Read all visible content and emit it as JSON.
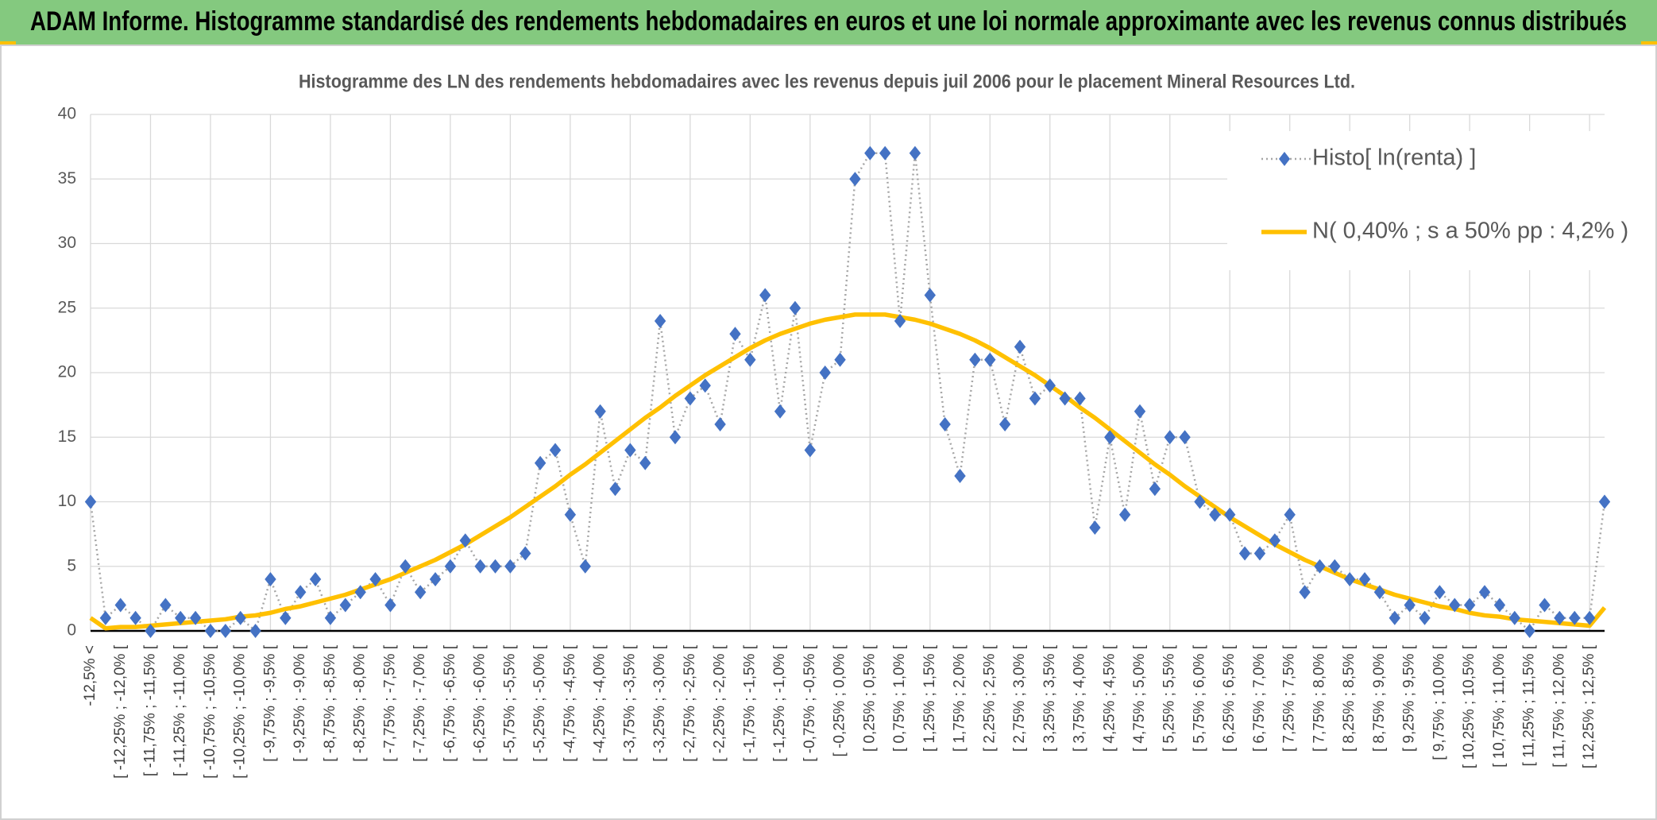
{
  "header": {
    "title": "ADAM Informe. Histogramme standardisé des rendements hebdomadaires en euros et une loi normale approximante avec les revenus connus distribués"
  },
  "chart_data": {
    "type": "line",
    "title": "Histogramme des LN des rendements hebdomadaires avec les revenus depuis juil 2006 pour le placement Mineral Resources Ltd.",
    "categories": [
      "-12,5% <",
      null,
      "[ -12,25% ; -12,0% [",
      null,
      "[ -11,75% ; -11,5% [",
      null,
      "[ -11,25% ; -11,0% [",
      null,
      "[ -10,75% ; -10,5% [",
      null,
      "[ -10,25% ; -10,0% [",
      null,
      "[ -9,75% ; -9,5% [",
      null,
      "[ -9,25% ; -9,0% [",
      null,
      "[ -8,75% ; -8,5% [",
      null,
      "[ -8,25% ; -8,0% [",
      null,
      "[ -7,75% ; -7,5% [",
      null,
      "[ -7,25% ; -7,0% [",
      null,
      "[ -6,75% ; -6,5% [",
      null,
      "[ -6,25% ; -6,0% [",
      null,
      "[ -5,75% ; -5,5% [",
      null,
      "[ -5,25% ; -5,0% [",
      null,
      "[ -4,75% ; -4,5% [",
      null,
      "[ -4,25% ; -4,0% [",
      null,
      "[ -3,75% ; -3,5% [",
      null,
      "[ -3,25% ; -3,0% [",
      null,
      "[ -2,75% ; -2,5% [",
      null,
      "[ -2,25% ; -2,0% [",
      null,
      "[ -1,75% ; -1,5% [",
      null,
      "[ -1,25% ; -1,0% [",
      null,
      "[ -0,75% ; -0,5% [",
      null,
      "[ -0,25% ; 0,0% [",
      null,
      "[ 0,25% ; 0,5% [",
      null,
      "[ 0,75% ; 1,0% [",
      null,
      "[ 1,25% ; 1,5% [",
      null,
      "[ 1,75% ; 2,0% [",
      null,
      "[ 2,25% ; 2,5% [",
      null,
      "[ 2,75% ; 3,0% [",
      null,
      "[ 3,25% ; 3,5% [",
      null,
      "[ 3,75% ; 4,0% [",
      null,
      "[ 4,25% ; 4,5% [",
      null,
      "[ 4,75% ; 5,0% [",
      null,
      "[ 5,25% ; 5,5% [",
      null,
      "[ 5,75% ; 6,0% [",
      null,
      "[ 6,25% ; 6,5% [",
      null,
      "[ 6,75% ; 7,0% [",
      null,
      "[ 7,25% ; 7,5% [",
      null,
      "[ 7,75% ; 8,0% [",
      null,
      "[ 8,25% ; 8,5% [",
      null,
      "[ 8,75% ; 9,0% [",
      null,
      "[ 9,25% ; 9,5% [",
      null,
      "[ 9,75% ; 10,0% [",
      null,
      "[ 10,25% ; 10,5% [",
      null,
      "[ 10,75% ; 11,0% [",
      null,
      "[ 11,25% ; 11,5% [",
      null,
      "[ 11,75% ; 12,0% [",
      null,
      "[ 12,25% ; 12,5% [",
      null
    ],
    "series": [
      {
        "name": "Histo[ ln(renta) ]",
        "color": "#4472c4",
        "line_color": "#a6a6a6",
        "values": [
          10,
          1,
          2,
          1,
          0,
          2,
          1,
          1,
          0,
          0,
          1,
          0,
          4,
          1,
          3,
          4,
          1,
          2,
          3,
          4,
          2,
          5,
          3,
          4,
          5,
          7,
          5,
          5,
          5,
          6,
          13,
          14,
          9,
          5,
          17,
          11,
          14,
          13,
          24,
          15,
          18,
          19,
          16,
          23,
          21,
          26,
          17,
          25,
          14,
          20,
          21,
          35,
          37,
          37,
          24,
          37,
          26,
          16,
          12,
          21,
          21,
          16,
          22,
          18,
          19,
          18,
          18,
          8,
          15,
          9,
          17,
          11,
          15,
          15,
          10,
          9,
          9,
          6,
          6,
          7,
          9,
          3,
          5,
          5,
          4,
          4,
          3,
          1,
          2,
          1,
          3,
          2,
          2,
          3,
          2,
          1,
          0,
          2,
          1,
          1,
          1,
          10
        ]
      },
      {
        "name": "N( 0,40% ; s a 50% pp : 4,2% )",
        "color": "#ffc000",
        "values": [
          1.0,
          0.2,
          0.3,
          0.3,
          0.4,
          0.5,
          0.6,
          0.7,
          0.8,
          0.9,
          1.1,
          1.2,
          1.4,
          1.7,
          1.9,
          2.2,
          2.5,
          2.8,
          3.2,
          3.6,
          4.0,
          4.5,
          5.0,
          5.5,
          6.1,
          6.7,
          7.4,
          8.1,
          8.8,
          9.6,
          10.4,
          11.2,
          12.1,
          12.9,
          13.8,
          14.7,
          15.6,
          16.5,
          17.3,
          18.2,
          19.0,
          19.8,
          20.5,
          21.2,
          21.9,
          22.5,
          23.0,
          23.4,
          23.8,
          24.1,
          24.3,
          24.5,
          24.5,
          24.5,
          24.3,
          24.1,
          23.8,
          23.4,
          23.0,
          22.5,
          21.9,
          21.2,
          20.5,
          19.8,
          19.0,
          18.2,
          17.3,
          16.5,
          15.6,
          14.7,
          13.8,
          12.9,
          12.1,
          11.2,
          10.4,
          9.6,
          8.8,
          8.1,
          7.4,
          6.7,
          6.1,
          5.5,
          5.0,
          4.5,
          4.0,
          3.6,
          3.2,
          2.8,
          2.5,
          2.2,
          1.9,
          1.7,
          1.4,
          1.2,
          1.1,
          0.9,
          0.8,
          0.7,
          0.6,
          0.5,
          0.4,
          1.8
        ]
      }
    ],
    "ylim": [
      0,
      40
    ],
    "yticks": [
      0,
      5,
      10,
      15,
      20,
      25,
      30,
      35,
      40
    ],
    "grid": true,
    "legend": "top-right"
  }
}
